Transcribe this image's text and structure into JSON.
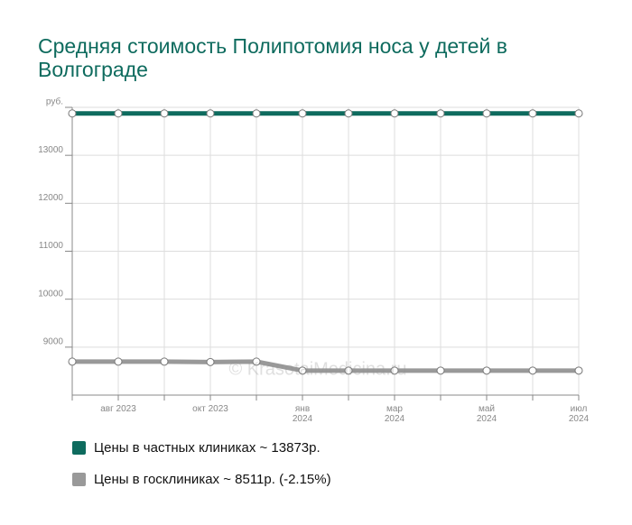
{
  "chart_data": {
    "type": "line",
    "title": "Средняя стоимость Полипотомия носа у детей в Волгограде",
    "watermark": "© KrasotaiMedicina.ru",
    "categories": [
      null,
      "авг 2023",
      null,
      "окт 2023",
      null,
      "янв 2024",
      null,
      "мар 2024",
      null,
      "май 2024",
      null,
      "июл 2024"
    ],
    "series": [
      {
        "name": "Цены в частных клиниках ~ 13873р.",
        "color": "#0e6b5e",
        "values": [
          13873,
          13873,
          13873,
          13873,
          13873,
          13873,
          13873,
          13873,
          13873,
          13873,
          13873,
          13873
        ]
      },
      {
        "name": "Цены в госклиниках ~ 8511р. (-2.15%)",
        "color": "#999999",
        "values": [
          8698,
          8698,
          8698,
          8690,
          8698,
          8511,
          8511,
          8511,
          8511,
          8511,
          8511,
          8511
        ]
      }
    ],
    "ylim": [
      8000,
      14000
    ],
    "yticks": [
      9000,
      10000,
      11000,
      12000,
      13000,
      {
        "value": 14000,
        "label": "руб."
      }
    ],
    "grid": true
  }
}
